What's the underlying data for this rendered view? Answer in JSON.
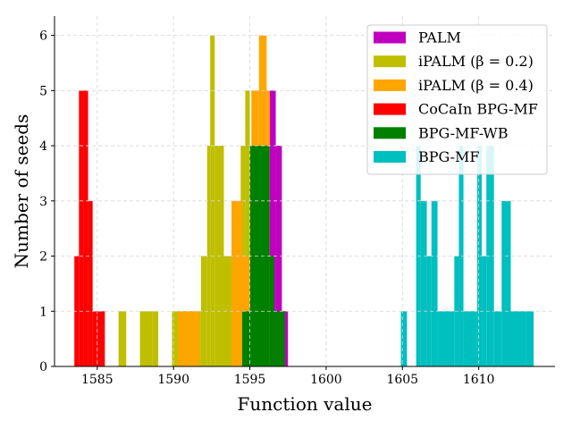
{
  "chart_data": {
    "type": "bar",
    "subtype": "overlaid-histogram",
    "xlabel": "Function value",
    "ylabel": "Number of seeds",
    "xlim": [
      1582.2,
      1615.0
    ],
    "ylim": [
      0,
      6.35
    ],
    "xticks": [
      1585,
      1590,
      1595,
      1600,
      1605,
      1610
    ],
    "yticks": [
      0,
      1,
      2,
      3,
      4,
      5,
      6
    ],
    "grid": true,
    "legend_position": "top-right",
    "series": [
      {
        "name": "PALM",
        "color": "#bf00bf",
        "bins": [
          {
            "x0": 1596.3,
            "x1": 1596.7,
            "y": 5
          },
          {
            "x0": 1596.7,
            "x1": 1597.1,
            "y": 4
          },
          {
            "x0": 1597.1,
            "x1": 1597.5,
            "y": 1
          }
        ]
      },
      {
        "name": "iPALM (β = 0.2)",
        "color": "#bfbf00",
        "bins": [
          {
            "x0": 1586.4,
            "x1": 1586.9,
            "y": 1
          },
          {
            "x0": 1587.8,
            "x1": 1588.6,
            "y": 1
          },
          {
            "x0": 1588.6,
            "x1": 1589.0,
            "y": 1
          },
          {
            "x0": 1589.9,
            "x1": 1590.7,
            "y": 1
          },
          {
            "x0": 1590.7,
            "x1": 1591.8,
            "y": 1
          },
          {
            "x0": 1591.8,
            "x1": 1592.2,
            "y": 2
          },
          {
            "x0": 1592.2,
            "x1": 1592.4,
            "y": 4
          },
          {
            "x0": 1592.4,
            "x1": 1592.7,
            "y": 6
          },
          {
            "x0": 1592.7,
            "x1": 1593.3,
            "y": 4
          },
          {
            "x0": 1593.3,
            "x1": 1593.8,
            "y": 2
          },
          {
            "x0": 1593.8,
            "x1": 1594.4,
            "y": 3
          },
          {
            "x0": 1594.4,
            "x1": 1594.7,
            "y": 4
          },
          {
            "x0": 1594.7,
            "x1": 1595.0,
            "y": 5
          },
          {
            "x0": 1595.0,
            "x1": 1595.5,
            "y": 3
          }
        ]
      },
      {
        "name": "iPALM (β = 0.4)",
        "color": "#ffa500",
        "bins": [
          {
            "x0": 1590.3,
            "x1": 1591.0,
            "y": 1
          },
          {
            "x0": 1591.0,
            "x1": 1591.7,
            "y": 1
          },
          {
            "x0": 1593.8,
            "x1": 1594.5,
            "y": 3
          },
          {
            "x0": 1594.5,
            "x1": 1595.1,
            "y": 2
          },
          {
            "x0": 1595.1,
            "x1": 1595.6,
            "y": 5
          },
          {
            "x0": 1595.6,
            "x1": 1596.1,
            "y": 6
          },
          {
            "x0": 1596.1,
            "x1": 1596.3,
            "y": 5
          }
        ]
      },
      {
        "name": "CoCaIn BPG-MF",
        "color": "#ff0000",
        "bins": [
          {
            "x0": 1583.5,
            "x1": 1583.8,
            "y": 2
          },
          {
            "x0": 1583.8,
            "x1": 1584.1,
            "y": 5
          },
          {
            "x0": 1584.1,
            "x1": 1584.4,
            "y": 5
          },
          {
            "x0": 1584.4,
            "x1": 1584.7,
            "y": 3
          },
          {
            "x0": 1584.7,
            "x1": 1585.0,
            "y": 1
          },
          {
            "x0": 1585.0,
            "x1": 1585.5,
            "y": 1
          }
        ]
      },
      {
        "name": "BPG-MF-WB",
        "color": "#008000",
        "bins": [
          {
            "x0": 1594.5,
            "x1": 1595.0,
            "y": 1
          },
          {
            "x0": 1595.0,
            "x1": 1596.3,
            "y": 4
          },
          {
            "x0": 1596.3,
            "x1": 1596.6,
            "y": 2
          },
          {
            "x0": 1596.6,
            "x1": 1597.3,
            "y": 1
          }
        ]
      },
      {
        "name": "BPG-MF",
        "color": "#00bfbf",
        "bins": [
          {
            "x0": 1604.9,
            "x1": 1605.3,
            "y": 1
          },
          {
            "x0": 1605.9,
            "x1": 1606.2,
            "y": 4
          },
          {
            "x0": 1606.2,
            "x1": 1606.6,
            "y": 3
          },
          {
            "x0": 1606.6,
            "x1": 1606.9,
            "y": 2
          },
          {
            "x0": 1606.9,
            "x1": 1607.3,
            "y": 3
          },
          {
            "x0": 1607.3,
            "x1": 1608.4,
            "y": 1
          },
          {
            "x0": 1608.4,
            "x1": 1608.7,
            "y": 2
          },
          {
            "x0": 1608.7,
            "x1": 1609.0,
            "y": 4
          },
          {
            "x0": 1609.0,
            "x1": 1609.9,
            "y": 1
          },
          {
            "x0": 1609.9,
            "x1": 1610.2,
            "y": 4
          },
          {
            "x0": 1610.2,
            "x1": 1610.5,
            "y": 2
          },
          {
            "x0": 1610.5,
            "x1": 1611.0,
            "y": 4
          },
          {
            "x0": 1611.0,
            "x1": 1611.5,
            "y": 1
          },
          {
            "x0": 1611.5,
            "x1": 1612.1,
            "y": 3
          },
          {
            "x0": 1612.1,
            "x1": 1612.6,
            "y": 1
          },
          {
            "x0": 1612.6,
            "x1": 1613.1,
            "y": 1
          },
          {
            "x0": 1613.1,
            "x1": 1613.6,
            "y": 1
          }
        ]
      }
    ]
  }
}
